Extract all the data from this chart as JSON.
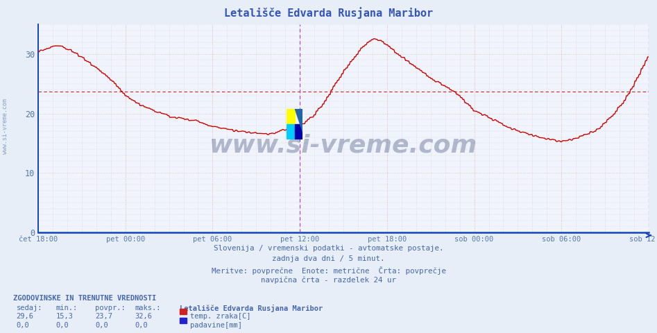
{
  "title": "Letališče Edvarda Rusjana Maribor",
  "title_color": "#3355bb",
  "bg_color": "#e8eef8",
  "plot_bg_color": "#f0f4fc",
  "grid_color_h": "#ddaaaa",
  "grid_color_v": "#ddaaaa",
  "axis_color": "#3366cc",
  "tick_label_color": "#5577aa",
  "text_color": "#4466aa",
  "ylim": [
    0,
    35
  ],
  "yticks": [
    0,
    10,
    20,
    30
  ],
  "x_labels": [
    "čet 18:00",
    "pet 00:00",
    "pet 06:00",
    "pet 12:00",
    "pet 18:00",
    "sob 00:00",
    "sob 06:00",
    "sob 12:00"
  ],
  "avg_line_y": 23.7,
  "avg_line_color": "#cc2222",
  "vertical_line_color": "#bb44cc",
  "bottom_text1": "Slovenija / vremenski podatki - avtomatske postaje.",
  "bottom_text2": "zadnja dva dni / 5 minut.",
  "bottom_text3": "Meritve: povprečne  Enote: metrične  Črta: povprečje",
  "bottom_text4": "navpična črta - razdelek 24 ur",
  "stat_header": "ZGODOVINSKE IN TRENUTNE VREDNOSTI",
  "stat_headers": [
    "sedaj:",
    "min.:",
    "povpr.:",
    "maks.:"
  ],
  "stat_legend_title": "Letališče Edvarda Rusjana Maribor",
  "stat_row2_vals": [
    "29,6",
    "15,3",
    "23,7",
    "32,6"
  ],
  "stat_row2_legend": "temp. zraka[C]",
  "stat_row2_color": "#cc2222",
  "stat_row3_vals": [
    "0,0",
    "0,0",
    "0,0",
    "0,0"
  ],
  "stat_row3_legend": "padavine[mm]",
  "stat_row3_color": "#2222cc",
  "watermark_text": "www.si-vreme.com",
  "watermark_color": "#1a3060",
  "watermark_alpha": 0.3,
  "line_color": "#cc0000",
  "line_width": 1.0,
  "n_points": 576,
  "keypoints_x": [
    0.0,
    0.015,
    0.025,
    0.04,
    0.055,
    0.07,
    0.09,
    0.11,
    0.13,
    0.143,
    0.165,
    0.19,
    0.215,
    0.24,
    0.26,
    0.28,
    0.286,
    0.3,
    0.315,
    0.33,
    0.35,
    0.37,
    0.39,
    0.41,
    0.43,
    0.45,
    0.47,
    0.49,
    0.51,
    0.53,
    0.54,
    0.555,
    0.571,
    0.59,
    0.61,
    0.63,
    0.65,
    0.67,
    0.69,
    0.714,
    0.735,
    0.755,
    0.775,
    0.795,
    0.815,
    0.83,
    0.845,
    0.857,
    0.87,
    0.885,
    0.9,
    0.92,
    0.94,
    0.96,
    0.975,
    0.99,
    1.0
  ],
  "keypoints_y": [
    30.5,
    30.8,
    31.5,
    31.2,
    30.5,
    29.5,
    28.0,
    26.5,
    24.5,
    23.0,
    21.5,
    20.5,
    19.5,
    19.0,
    18.8,
    18.0,
    17.8,
    17.5,
    17.2,
    17.0,
    16.8,
    16.5,
    16.8,
    17.5,
    18.0,
    19.5,
    22.0,
    25.5,
    28.5,
    31.0,
    32.0,
    32.6,
    31.5,
    30.0,
    28.5,
    27.0,
    25.5,
    24.5,
    23.0,
    20.5,
    19.5,
    18.5,
    17.5,
    16.8,
    16.2,
    15.8,
    15.5,
    15.3,
    15.5,
    16.0,
    16.5,
    17.5,
    19.5,
    22.0,
    24.5,
    27.5,
    29.5
  ]
}
